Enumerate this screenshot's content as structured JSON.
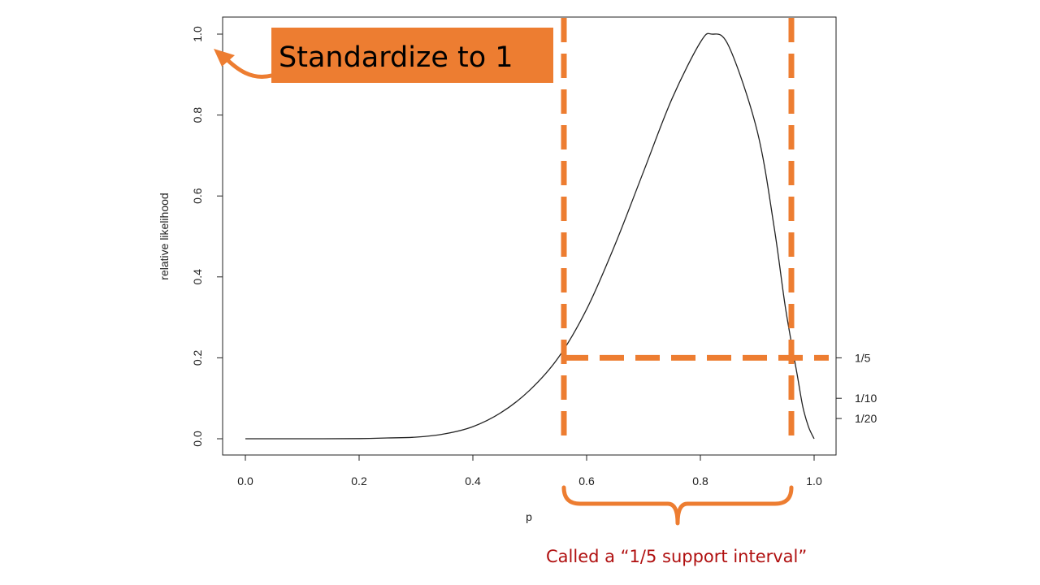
{
  "chart_data": {
    "type": "line",
    "xlabel": "p",
    "ylabel": "relative likelihood",
    "xlim": [
      0.0,
      1.0
    ],
    "ylim": [
      0.0,
      1.0
    ],
    "x_ticks": [
      "0.0",
      "0.2",
      "0.4",
      "0.6",
      "0.8",
      "1.0"
    ],
    "y_ticks": [
      "0.0",
      "0.2",
      "0.4",
      "0.6",
      "0.8",
      "1.0"
    ],
    "right_ticks": [
      {
        "value": 0.2,
        "label": "1/5"
      },
      {
        "value": 0.1,
        "label": "1/10"
      },
      {
        "value": 0.05,
        "label": "1/20"
      }
    ],
    "grid": false,
    "legend": "none",
    "series": [
      {
        "x": [
          0.0,
          0.1,
          0.2,
          0.25,
          0.3,
          0.35,
          0.4,
          0.45,
          0.5,
          0.55,
          0.6,
          0.65,
          0.7,
          0.75,
          0.8,
          0.82,
          0.85,
          0.9,
          0.93,
          0.95,
          0.97,
          0.98,
          0.99,
          1.0
        ],
        "y": [
          0.0,
          0.0,
          0.0005,
          0.002,
          0.004,
          0.012,
          0.03,
          0.065,
          0.12,
          0.2,
          0.32,
          0.48,
          0.66,
          0.84,
          0.98,
          1.0,
          0.97,
          0.76,
          0.52,
          0.32,
          0.16,
          0.08,
          0.03,
          0.0
        ]
      }
    ],
    "annotations": {
      "callout": "Standardize to 1",
      "interval_note": "Called a “1/5 support interval”",
      "interval_lower": 0.56,
      "interval_upper": 0.96,
      "threshold": 0.2
    },
    "colors": {
      "accent": "#ED7D31",
      "curve": "#222222",
      "note": "#B01010"
    }
  }
}
